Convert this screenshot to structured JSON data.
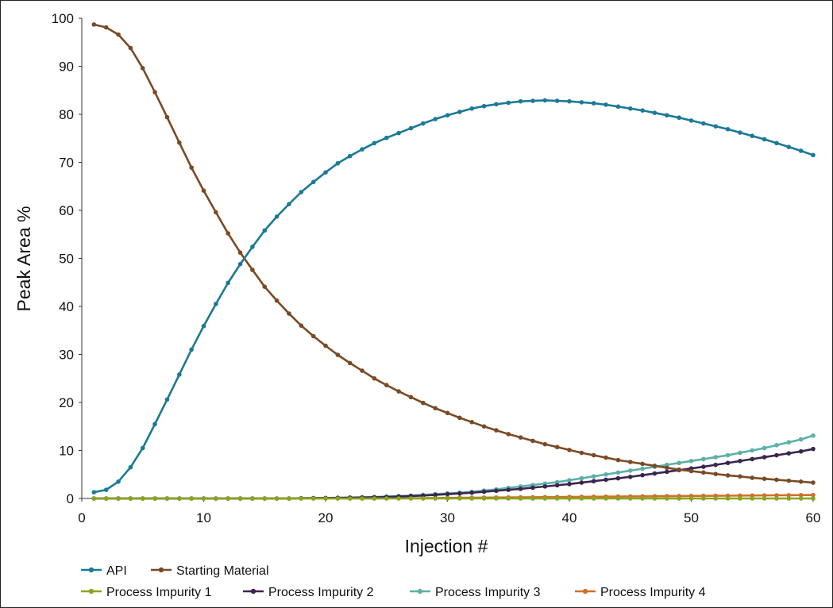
{
  "chart_data": {
    "type": "line",
    "title": "",
    "xlabel": "Injection #",
    "ylabel": "Peak Area %",
    "xlim": [
      0,
      60
    ],
    "ylim": [
      0,
      100
    ],
    "xticks": [
      0,
      10,
      20,
      30,
      40,
      50,
      60
    ],
    "yticks": [
      0,
      10,
      20,
      30,
      40,
      50,
      60,
      70,
      80,
      90,
      100
    ],
    "grid": false,
    "legend_position": "bottom",
    "x": [
      1,
      2,
      3,
      4,
      5,
      6,
      7,
      8,
      9,
      10,
      11,
      12,
      13,
      14,
      15,
      16,
      17,
      18,
      19,
      20,
      21,
      22,
      23,
      24,
      25,
      26,
      27,
      28,
      29,
      30,
      31,
      32,
      33,
      34,
      35,
      36,
      37,
      38,
      39,
      40,
      41,
      42,
      43,
      44,
      45,
      46,
      47,
      48,
      49,
      50,
      51,
      52,
      53,
      54,
      55,
      56,
      57,
      58,
      59,
      60
    ],
    "series": [
      {
        "name": "API",
        "color": "#1b7a96",
        "values": [
          1.3,
          1.8,
          3.5,
          6.5,
          10.5,
          15.5,
          20.6,
          25.8,
          31.0,
          35.9,
          40.5,
          44.9,
          48.8,
          52.4,
          55.8,
          58.7,
          61.3,
          63.8,
          65.9,
          67.9,
          69.8,
          71.3,
          72.7,
          74.0,
          75.1,
          76.1,
          77.1,
          78.1,
          79.0,
          79.8,
          80.5,
          81.2,
          81.7,
          82.1,
          82.4,
          82.7,
          82.8,
          82.9,
          82.8,
          82.7,
          82.5,
          82.3,
          82.0,
          81.6,
          81.2,
          80.8,
          80.3,
          79.8,
          79.3,
          78.7,
          78.1,
          77.5,
          76.9,
          76.2,
          75.5,
          74.8,
          74.0,
          73.2,
          72.4,
          71.5
        ]
      },
      {
        "name": "Starting Material",
        "color": "#7a4a25",
        "values": [
          98.7,
          98.1,
          96.6,
          93.8,
          89.6,
          84.6,
          79.4,
          74.1,
          68.9,
          64.1,
          59.6,
          55.2,
          51.2,
          47.6,
          44.1,
          41.2,
          38.5,
          36.0,
          33.8,
          31.8,
          29.9,
          28.2,
          26.6,
          25.0,
          23.6,
          22.3,
          21.1,
          19.9,
          18.8,
          17.8,
          16.8,
          15.9,
          15.0,
          14.2,
          13.4,
          12.7,
          12.0,
          11.3,
          10.7,
          10.1,
          9.5,
          9.0,
          8.5,
          8.0,
          7.6,
          7.2,
          6.8,
          6.4,
          6.0,
          5.7,
          5.4,
          5.1,
          4.8,
          4.6,
          4.3,
          4.1,
          3.9,
          3.7,
          3.5,
          3.3
        ]
      },
      {
        "name": "Process Impurity 1",
        "color": "#8aa521",
        "values": [
          0,
          0,
          0,
          0,
          0,
          0,
          0,
          0,
          0,
          0,
          0,
          0,
          0,
          0,
          0,
          0,
          0,
          0,
          0,
          0,
          0,
          0,
          0,
          0,
          0,
          0,
          0,
          0,
          0,
          0,
          0,
          0,
          0,
          0,
          0,
          0,
          0,
          0,
          0,
          0,
          0,
          0,
          0,
          0,
          0,
          0,
          0,
          0,
          0,
          0,
          0,
          0,
          0,
          0,
          0,
          0,
          0,
          0,
          0,
          0
        ]
      },
      {
        "name": "Process Impurity 2",
        "color": "#3a2550",
        "values": [
          0,
          0,
          0,
          0,
          0,
          0,
          0,
          0,
          0,
          0,
          0,
          0,
          0,
          0,
          0,
          0,
          0,
          0.05,
          0.08,
          0.1,
          0.12,
          0.15,
          0.2,
          0.25,
          0.3,
          0.4,
          0.5,
          0.6,
          0.75,
          0.9,
          1.05,
          1.2,
          1.4,
          1.6,
          1.8,
          2.0,
          2.25,
          2.5,
          2.75,
          3.0,
          3.3,
          3.6,
          3.9,
          4.2,
          4.5,
          4.85,
          5.2,
          5.55,
          5.9,
          6.25,
          6.6,
          7.0,
          7.4,
          7.8,
          8.2,
          8.6,
          9.0,
          9.4,
          9.8,
          10.3
        ]
      },
      {
        "name": "Process Impurity 3",
        "color": "#5cb0a6",
        "values": [
          0,
          0,
          0,
          0,
          0,
          0,
          0,
          0,
          0,
          0,
          0,
          0,
          0,
          0,
          0,
          0,
          0,
          0.05,
          0.08,
          0.1,
          0.15,
          0.2,
          0.25,
          0.3,
          0.4,
          0.5,
          0.6,
          0.75,
          0.9,
          1.05,
          1.2,
          1.4,
          1.65,
          1.9,
          2.2,
          2.5,
          2.8,
          3.1,
          3.4,
          3.8,
          4.2,
          4.6,
          5.0,
          5.4,
          5.8,
          6.2,
          6.6,
          7.0,
          7.4,
          7.8,
          8.2,
          8.6,
          9.0,
          9.5,
          10.0,
          10.5,
          11.1,
          11.7,
          12.3,
          13.1
        ]
      },
      {
        "name": "Process Impurity 4",
        "color": "#d0702a",
        "values": [
          0,
          0,
          0,
          0,
          0,
          0,
          0,
          0,
          0,
          0,
          0,
          0,
          0,
          0,
          0,
          0,
          0,
          0,
          0,
          0,
          0,
          0,
          0,
          0,
          0.02,
          0.04,
          0.06,
          0.08,
          0.1,
          0.12,
          0.14,
          0.16,
          0.18,
          0.2,
          0.22,
          0.24,
          0.26,
          0.28,
          0.3,
          0.32,
          0.34,
          0.36,
          0.38,
          0.4,
          0.42,
          0.44,
          0.46,
          0.48,
          0.5,
          0.52,
          0.54,
          0.56,
          0.58,
          0.6,
          0.62,
          0.64,
          0.66,
          0.68,
          0.7,
          0.72
        ]
      }
    ]
  }
}
